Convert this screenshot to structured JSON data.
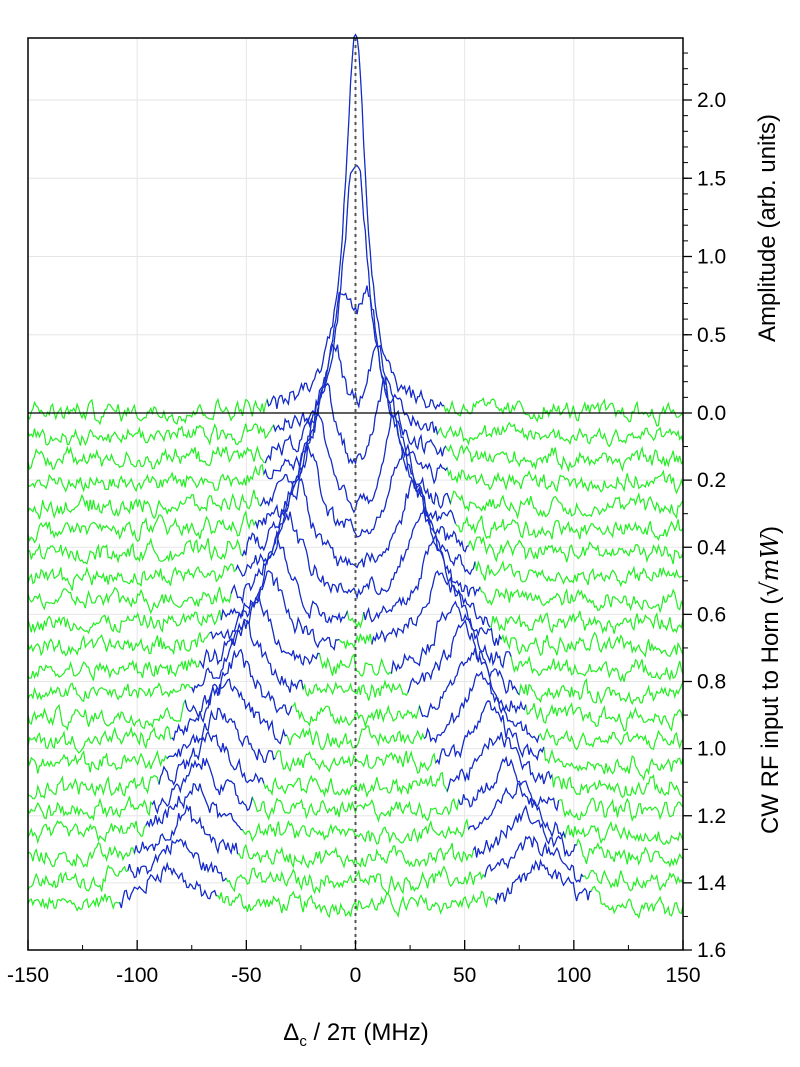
{
  "chart_data": {
    "type": "line",
    "title": "",
    "xlabel": {
      "symbol": "Δ",
      "subscript": "c",
      "rest": " / 2π (MHz)"
    },
    "xlim": [
      -150,
      150
    ],
    "x_ticks": [
      "-150",
      "-100",
      "-50",
      "0",
      "50",
      "100",
      "150"
    ],
    "right_axis_upper": {
      "label": "Amplitude (arb. units)",
      "ticks": [
        "0.0",
        "0.5",
        "1.0",
        "1.5",
        "2.0"
      ],
      "range": [
        0,
        2.4
      ]
    },
    "right_axis_lower": {
      "label_text": "CW RF input to Horn (",
      "label_math": "√mW",
      "label_close": ")",
      "ticks": [
        "0.2",
        "0.4",
        "0.6",
        "0.8",
        "1.0",
        "1.2",
        "1.4",
        "1.6"
      ],
      "range": [
        0,
        1.6
      ]
    },
    "zero_detuning_line": 0,
    "colors": {
      "peak": "#1f1fdd",
      "baseline": "#22ee22",
      "grid": "#e6e6e6",
      "dotted": "#555555"
    },
    "series": [
      {
        "offset": 0.0,
        "peaks": [
          0
        ],
        "amplitude": 2.4,
        "width": 6
      },
      {
        "offset": 0.07,
        "peaks": [
          -2,
          2
        ],
        "amplitude": 1.0,
        "width": 6
      },
      {
        "offset": 0.14,
        "peaks": [
          -6,
          6
        ],
        "amplitude": 0.85,
        "width": 7
      },
      {
        "offset": 0.21,
        "peaks": [
          -10,
          10
        ],
        "amplitude": 0.8,
        "width": 7
      },
      {
        "offset": 0.28,
        "peaks": [
          -14,
          14
        ],
        "amplitude": 0.75,
        "width": 7
      },
      {
        "offset": 0.35,
        "peaks": [
          -18,
          18
        ],
        "amplitude": 0.7,
        "width": 7
      },
      {
        "offset": 0.42,
        "peaks": [
          -22,
          22
        ],
        "amplitude": 0.65,
        "width": 8
      },
      {
        "offset": 0.49,
        "peaks": [
          -27,
          27
        ],
        "amplitude": 0.6,
        "width": 8
      },
      {
        "offset": 0.56,
        "peaks": [
          -31,
          31
        ],
        "amplitude": 0.55,
        "width": 8
      },
      {
        "offset": 0.63,
        "peaks": [
          -36,
          36
        ],
        "amplitude": 0.52,
        "width": 8
      },
      {
        "offset": 0.7,
        "peaks": [
          -40,
          40
        ],
        "amplitude": 0.48,
        "width": 9
      },
      {
        "offset": 0.77,
        "peaks": [
          -45,
          45
        ],
        "amplitude": 0.45,
        "width": 9
      },
      {
        "offset": 0.84,
        "peaks": [
          -50,
          50
        ],
        "amplitude": 0.42,
        "width": 9
      },
      {
        "offset": 0.91,
        "peaks": [
          -54,
          54
        ],
        "amplitude": 0.4,
        "width": 9
      },
      {
        "offset": 0.98,
        "peaks": [
          -58,
          58
        ],
        "amplitude": 0.38,
        "width": 10
      },
      {
        "offset": 1.05,
        "peaks": [
          -62,
          62
        ],
        "amplitude": 0.35,
        "width": 10
      },
      {
        "offset": 1.12,
        "peaks": [
          -66,
          66
        ],
        "amplitude": 0.33,
        "width": 10
      },
      {
        "offset": 1.19,
        "peaks": [
          -70,
          70
        ],
        "amplitude": 0.31,
        "width": 10
      },
      {
        "offset": 1.26,
        "peaks": [
          -74,
          74
        ],
        "amplitude": 0.3,
        "width": 10
      },
      {
        "offset": 1.33,
        "peaks": [
          -78,
          78
        ],
        "amplitude": 0.28,
        "width": 11
      },
      {
        "offset": 1.4,
        "peaks": [
          -82,
          82
        ],
        "amplitude": 0.26,
        "width": 11
      },
      {
        "offset": 1.47,
        "peaks": [
          -86,
          86
        ],
        "amplitude": 0.25,
        "width": 11
      }
    ]
  }
}
